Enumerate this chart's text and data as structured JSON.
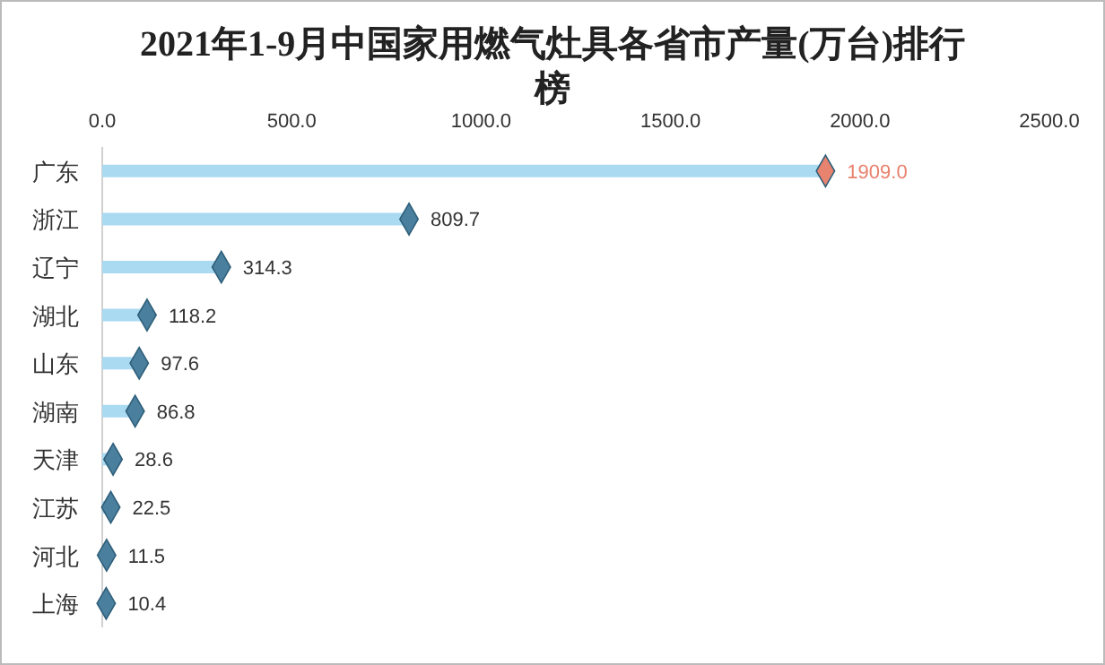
{
  "chart_data": {
    "type": "lollipop",
    "orientation": "horizontal",
    "title": "2021年1-9月中国家用燃气灶具各省市产量(万台)排行榜",
    "categories": [
      "广东",
      "浙江",
      "辽宁",
      "湖北",
      "山东",
      "湖南",
      "天津",
      "江苏",
      "河北",
      "上海"
    ],
    "values": [
      1909.0,
      809.7,
      314.3,
      118.2,
      97.6,
      86.8,
      28.6,
      22.5,
      11.5,
      10.4
    ],
    "value_labels": [
      "1909.0",
      "809.7",
      "314.3",
      "118.2",
      "97.6",
      "86.8",
      "28.6",
      "22.5",
      "11.5",
      "10.4"
    ],
    "color": "#a9daf2",
    "colors": [
      "#e8836f",
      "#4a7f9e",
      "#4a7f9e",
      "#4a7f9e",
      "#4a7f9e",
      "#4a7f9e",
      "#4a7f9e",
      "#4a7f9e",
      "#4a7f9e",
      "#4a7f9e"
    ],
    "marker": "diamond",
    "xlim": [
      0,
      2500
    ],
    "xticks": [
      {
        "value": 0,
        "label": "0.0"
      },
      {
        "value": 500,
        "label": "500.0"
      },
      {
        "value": 1000,
        "label": "1000.0"
      },
      {
        "value": 1500,
        "label": "1500.0"
      },
      {
        "value": 2000,
        "label": "2000.0"
      },
      {
        "value": 2500,
        "label": "2500.0"
      }
    ]
  }
}
